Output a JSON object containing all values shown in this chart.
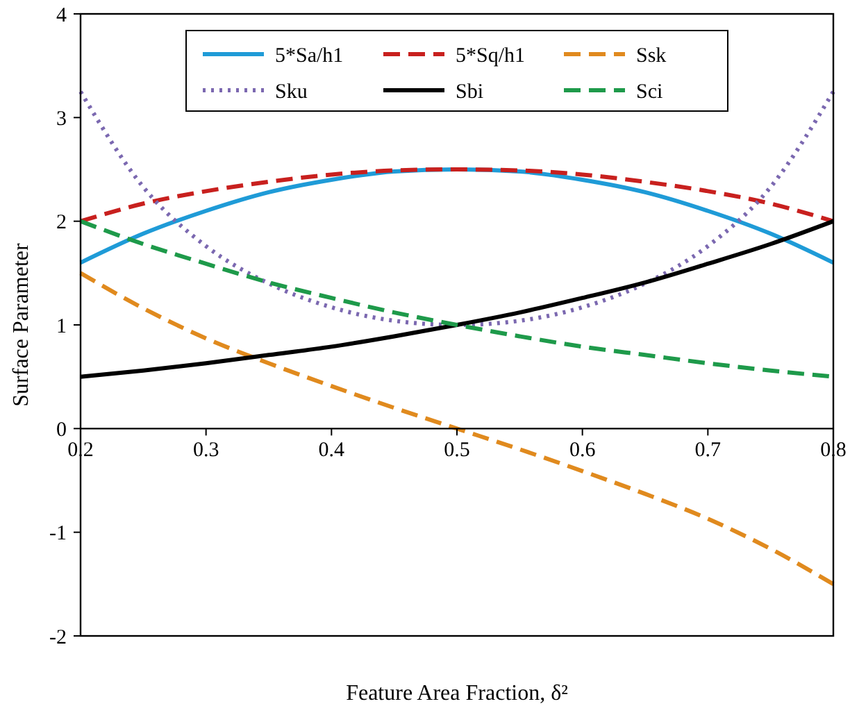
{
  "chart_data": {
    "type": "line",
    "xlabel": "Feature Area Fraction, δ²",
    "ylabel": "Surface Parameter",
    "x": [
      0.2,
      0.25,
      0.3,
      0.35,
      0.4,
      0.45,
      0.5,
      0.55,
      0.6,
      0.65,
      0.7,
      0.75,
      0.8
    ],
    "xlim": [
      0.2,
      0.8
    ],
    "xticks": [
      {
        "value": 0.2,
        "label": "0.2"
      },
      {
        "value": 0.3,
        "label": "0.3"
      },
      {
        "value": 0.4,
        "label": "0.4"
      },
      {
        "value": 0.5,
        "label": "0.5"
      },
      {
        "value": 0.6,
        "label": "0.6"
      },
      {
        "value": 0.7,
        "label": "0.7"
      },
      {
        "value": 0.8,
        "label": "0.8"
      }
    ],
    "ylim": [
      -2,
      4
    ],
    "yticks": [
      -2,
      -1,
      0,
      1,
      2,
      3,
      4
    ],
    "grid": false,
    "legend": "top",
    "marker": "none",
    "series": [
      {
        "name": "5*Sa/h1",
        "color": "#1f9bd7",
        "line_style": "solid",
        "values": [
          1.6,
          1.88,
          2.1,
          2.28,
          2.4,
          2.48,
          2.5,
          2.48,
          2.4,
          2.28,
          2.1,
          1.88,
          1.6
        ]
      },
      {
        "name": "5*Sq/h1",
        "color": "#c8201e",
        "line_style": "dashed",
        "values": [
          2,
          2.17,
          2.29,
          2.38,
          2.45,
          2.49,
          2.5,
          2.49,
          2.45,
          2.38,
          2.29,
          2.17,
          2
        ]
      },
      {
        "name": "Ssk",
        "color": "#e08a1e",
        "line_style": "dashed",
        "values": [
          1.5,
          1.16,
          0.87,
          0.63,
          0.41,
          0.2,
          0,
          -0.2,
          -0.41,
          -0.63,
          -0.87,
          -1.16,
          -1.5
        ]
      },
      {
        "name": "Sku",
        "color": "#7b68b0",
        "line_style": "dotted",
        "values": [
          3.25,
          2.33,
          1.76,
          1.4,
          1.17,
          1.04,
          1,
          1.04,
          1.17,
          1.4,
          1.76,
          2.33,
          3.25
        ]
      },
      {
        "name": "Sbi",
        "color": "#000000",
        "line_style": "solid",
        "values": [
          0.5,
          0.56,
          0.63,
          0.71,
          0.79,
          0.89,
          1,
          1.12,
          1.26,
          1.41,
          1.59,
          1.78,
          2
        ]
      },
      {
        "name": "Sci",
        "color": "#1e9a4a",
        "line_style": "dashed",
        "values": [
          2,
          1.78,
          1.59,
          1.41,
          1.26,
          1.12,
          1,
          0.89,
          0.79,
          0.71,
          0.63,
          0.56,
          0.5
        ]
      }
    ]
  }
}
